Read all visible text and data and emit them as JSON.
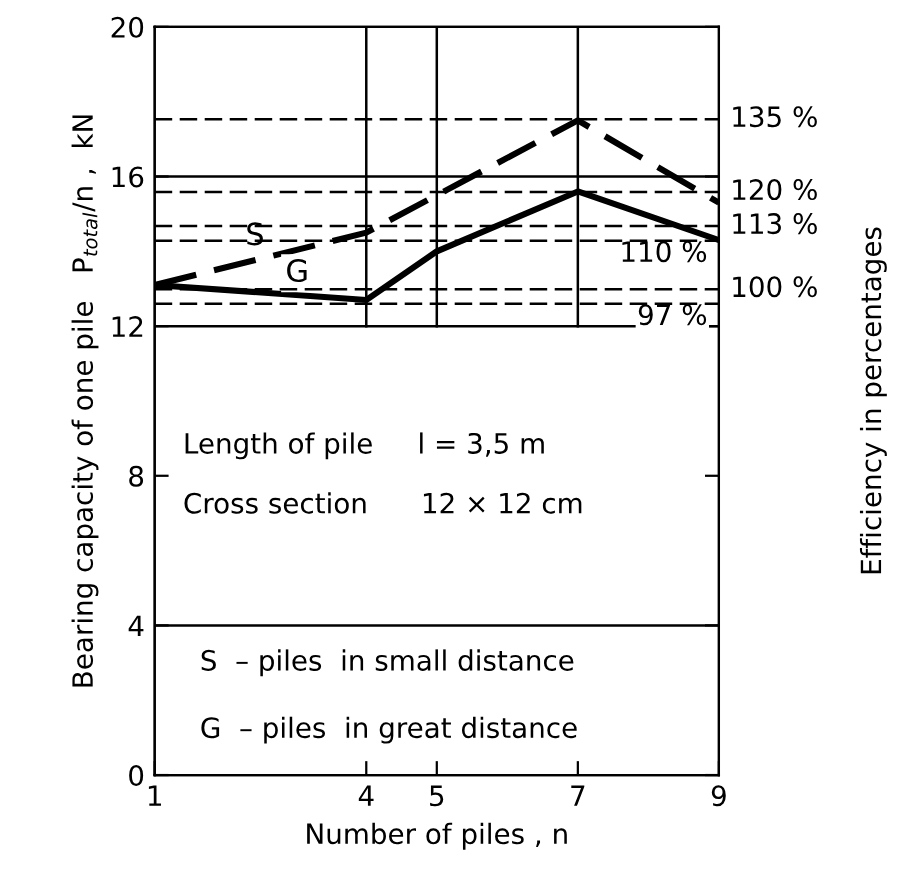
{
  "chart_data": {
    "type": "line",
    "xlabel": "Number of piles , n",
    "ylabel": "Bearing capacity of one pile   P$_{total}$/n ,  kN",
    "y2label": "Efficiency in percentages",
    "xlim": [
      1,
      9
    ],
    "xticks": [
      1,
      4,
      5,
      7,
      9
    ],
    "ylim": [
      0,
      20
    ],
    "yticks": [
      0,
      4,
      8,
      12,
      16,
      20
    ],
    "y2lim": [
      0,
      154
    ],
    "series": [
      {
        "name": "S",
        "color": "#000000",
        "line_style": "dashed",
        "x": [
          1,
          4,
          7,
          9
        ],
        "values": [
          13.1,
          14.5,
          17.5,
          15.3
        ]
      },
      {
        "name": "G",
        "color": "#000000",
        "line_style": "solid",
        "x": [
          1,
          4,
          5,
          7,
          9
        ],
        "values": [
          13.1,
          12.7,
          14.0,
          15.6,
          14.3
        ]
      }
    ],
    "ref_lines": [
      {
        "axis": "y2",
        "value": 135,
        "label": "135 %",
        "line_style": "dashed",
        "color": "#000000"
      },
      {
        "axis": "y2",
        "value": 120,
        "label": "120 %",
        "line_style": "dashed",
        "color": "#000000"
      },
      {
        "axis": "y2",
        "value": 113,
        "label": "113 %",
        "line_style": "dashed",
        "color": "#000000"
      },
      {
        "axis": "y2",
        "value": 110,
        "label": "110 %",
        "line_style": "dashed",
        "color": "#000000"
      },
      {
        "axis": "y2",
        "value": 100,
        "label": "100 %",
        "line_style": "dashed",
        "color": "#000000"
      },
      {
        "axis": "y2",
        "value": 97,
        "label": "97 %",
        "line_style": "dashed",
        "color": "#000000"
      },
      {
        "axis": "y",
        "value": 16,
        "label": null,
        "line_style": "solid",
        "color": "#000000"
      },
      {
        "axis": "y",
        "value": 12,
        "label": null,
        "line_style": "solid",
        "color": "#000000"
      },
      {
        "axis": "y",
        "value": 4,
        "label": null,
        "line_style": "solid",
        "color": "#000000"
      },
      {
        "axis": "x",
        "value": 4,
        "label": null,
        "line_style": "solid",
        "color": "#000000"
      },
      {
        "axis": "x",
        "value": 5,
        "label": null,
        "line_style": "solid",
        "color": "#000000"
      },
      {
        "axis": "x",
        "value": 7,
        "label": null,
        "line_style": "solid",
        "color": "#000000"
      }
    ],
    "annotations": [
      "Length of pile     l = 3,5 m",
      "Cross section      12 × 12 cm",
      "S  – piles  in small distance",
      "G  – piles  in great distance"
    ],
    "grid": false,
    "legend": false,
    "marker": "none"
  }
}
